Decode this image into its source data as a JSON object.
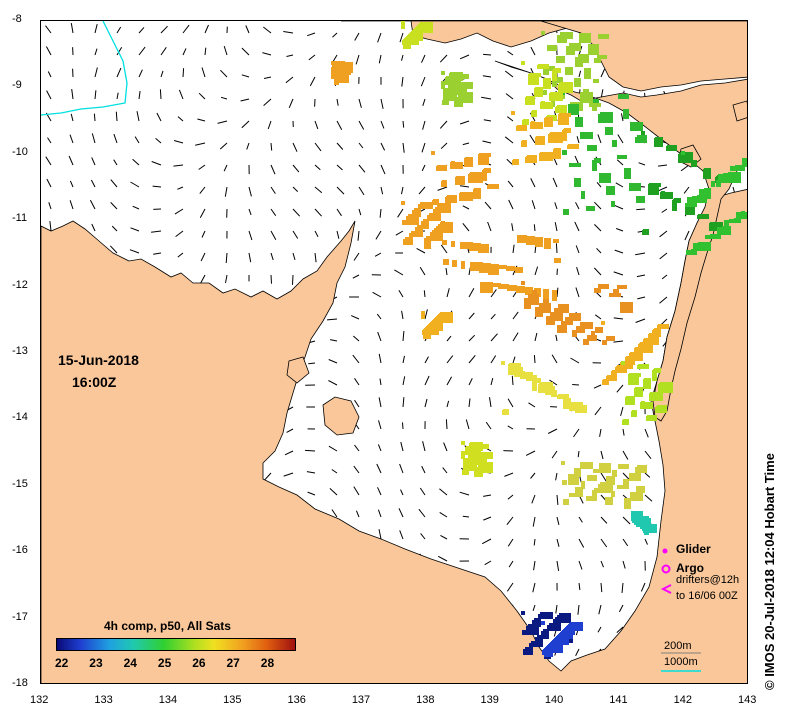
{
  "map": {
    "date": "15-Jun-2018",
    "time": "16:00Z",
    "lon_ticks": [
      "132",
      "133",
      "134",
      "135",
      "136",
      "137",
      "138",
      "139",
      "140",
      "141",
      "142",
      "143"
    ],
    "lat_ticks": [
      "-8",
      "-9",
      "-10",
      "-11",
      "-12",
      "-13",
      "-14",
      "-15",
      "-16",
      "-17",
      "-18"
    ],
    "colors": {
      "land": "#f9c79a",
      "sea": "#ffffff",
      "contour_200m": "#7f7f7f",
      "contour_1000m": "#00e0e0"
    }
  },
  "colorbar": {
    "title": "4h comp, p50, All Sats",
    "labels": [
      "22",
      "23",
      "24",
      "25",
      "26",
      "27",
      "28"
    ]
  },
  "legend": {
    "glider": "Glider",
    "argo": "Argo",
    "drifters_line1": "drifters@12h",
    "drifters_line2": "to 16/06 00Z",
    "contour_200": "200m",
    "contour_1000": "1000m"
  },
  "credit": "© IMOS 20-Jul-2018 12:04 Hobart Time"
}
